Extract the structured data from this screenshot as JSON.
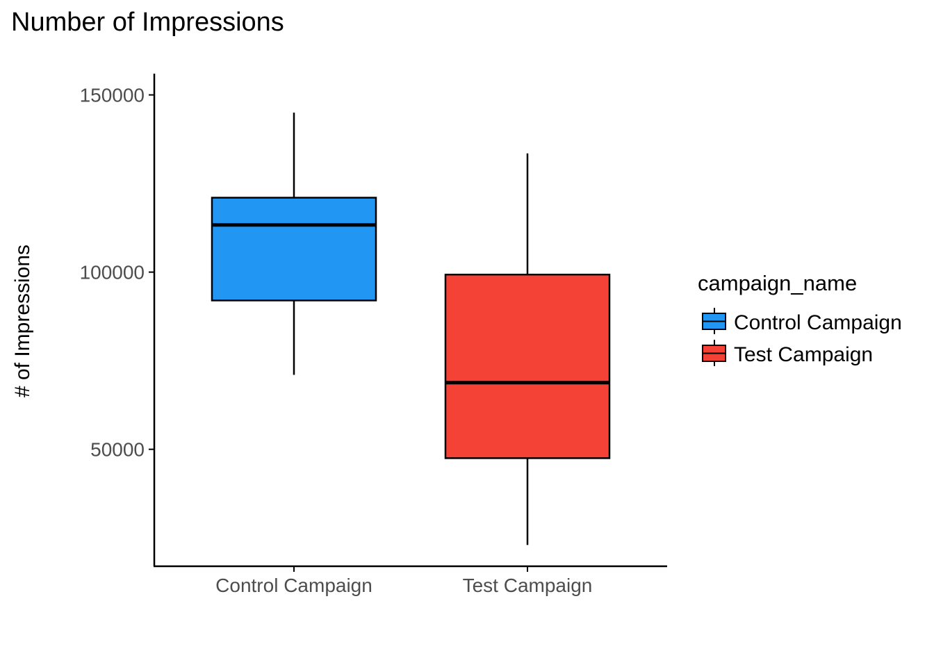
{
  "chart_data": {
    "type": "box",
    "title": "Number of Impressions",
    "xlabel": "",
    "ylabel": "# of Impressions",
    "ylim": [
      17000,
      156000
    ],
    "yticks": [
      50000,
      100000,
      150000
    ],
    "ytick_labels": [
      "50000",
      "100000",
      "150000"
    ],
    "categories": [
      "Control Campaign",
      "Test Campaign"
    ],
    "series": [
      {
        "name": "Control Campaign",
        "color": "#2196F3",
        "min": 71000,
        "q1": 92000,
        "median": 113300,
        "q3": 121000,
        "max": 145000
      },
      {
        "name": "Test Campaign",
        "color": "#F44336",
        "min": 23000,
        "q1": 47500,
        "median": 68800,
        "q3": 99300,
        "max": 133500
      }
    ],
    "legend": {
      "title": "campaign_name",
      "position": "right",
      "entries": [
        "Control Campaign",
        "Test Campaign"
      ]
    },
    "grid": false
  }
}
